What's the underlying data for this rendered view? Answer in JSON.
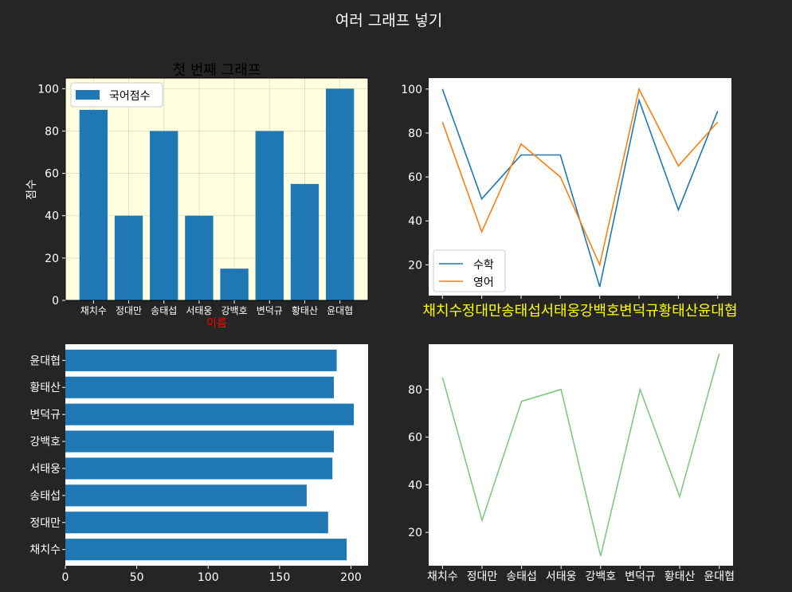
{
  "suptitle": "여러 그래프 넣기",
  "colors": {
    "background": "#252525",
    "bar": "#1f77b4",
    "math_line": "#1f77b4",
    "english_line": "#ff7f0e",
    "green_line": "#81c784",
    "panel1_bg": "#ffffe0",
    "xlabel": "#ff0000",
    "rotated_ticks": "#ffff00"
  },
  "chart_data": [
    {
      "type": "bar",
      "title": "첫 번째 그래프",
      "xlabel": "이름",
      "ylabel": "점수",
      "categories": [
        "채치수",
        "정대만",
        "송태섭",
        "서태웅",
        "강백호",
        "변덕규",
        "황태산",
        "윤대협"
      ],
      "series": [
        {
          "name": "국어점수",
          "values": [
            90,
            40,
            80,
            40,
            15,
            80,
            55,
            100
          ]
        }
      ],
      "ylim": [
        0,
        105
      ],
      "yticks": [
        0,
        20,
        40,
        60,
        80,
        100
      ],
      "grid": true,
      "legend": "top-left"
    },
    {
      "type": "line",
      "title": "",
      "categories": [
        "채치수",
        "정대만",
        "송태섭",
        "서태웅",
        "강백호",
        "변덕규",
        "황태산",
        "윤대협"
      ],
      "series": [
        {
          "name": "수학",
          "values": [
            100,
            50,
            70,
            70,
            10,
            95,
            45,
            90
          ]
        },
        {
          "name": "영어",
          "values": [
            85,
            35,
            75,
            60,
            20,
            100,
            65,
            85
          ]
        }
      ],
      "ylim": [
        6,
        105
      ],
      "yticks": [
        20,
        40,
        60,
        80,
        100
      ],
      "grid": false,
      "legend": "bottom-left"
    },
    {
      "type": "bar",
      "orientation": "horizontal",
      "title": "",
      "categories": [
        "채치수",
        "정대만",
        "송태섭",
        "서태웅",
        "강백호",
        "변덕규",
        "황태산",
        "윤대협"
      ],
      "values": [
        197,
        184,
        169,
        187,
        188,
        202,
        188,
        190
      ],
      "xlim": [
        0,
        212
      ],
      "xticks": [
        0,
        50,
        100,
        150,
        200
      ],
      "grid": false
    },
    {
      "type": "line",
      "title": "",
      "categories": [
        "채치수",
        "정대만",
        "송태섭",
        "서태웅",
        "강백호",
        "변덕규",
        "황태산",
        "윤대협"
      ],
      "values": [
        85,
        25,
        75,
        80,
        10,
        80,
        35,
        95
      ],
      "ylim": [
        6,
        99
      ],
      "yticks": [
        20,
        40,
        60,
        80
      ],
      "grid": false
    }
  ]
}
